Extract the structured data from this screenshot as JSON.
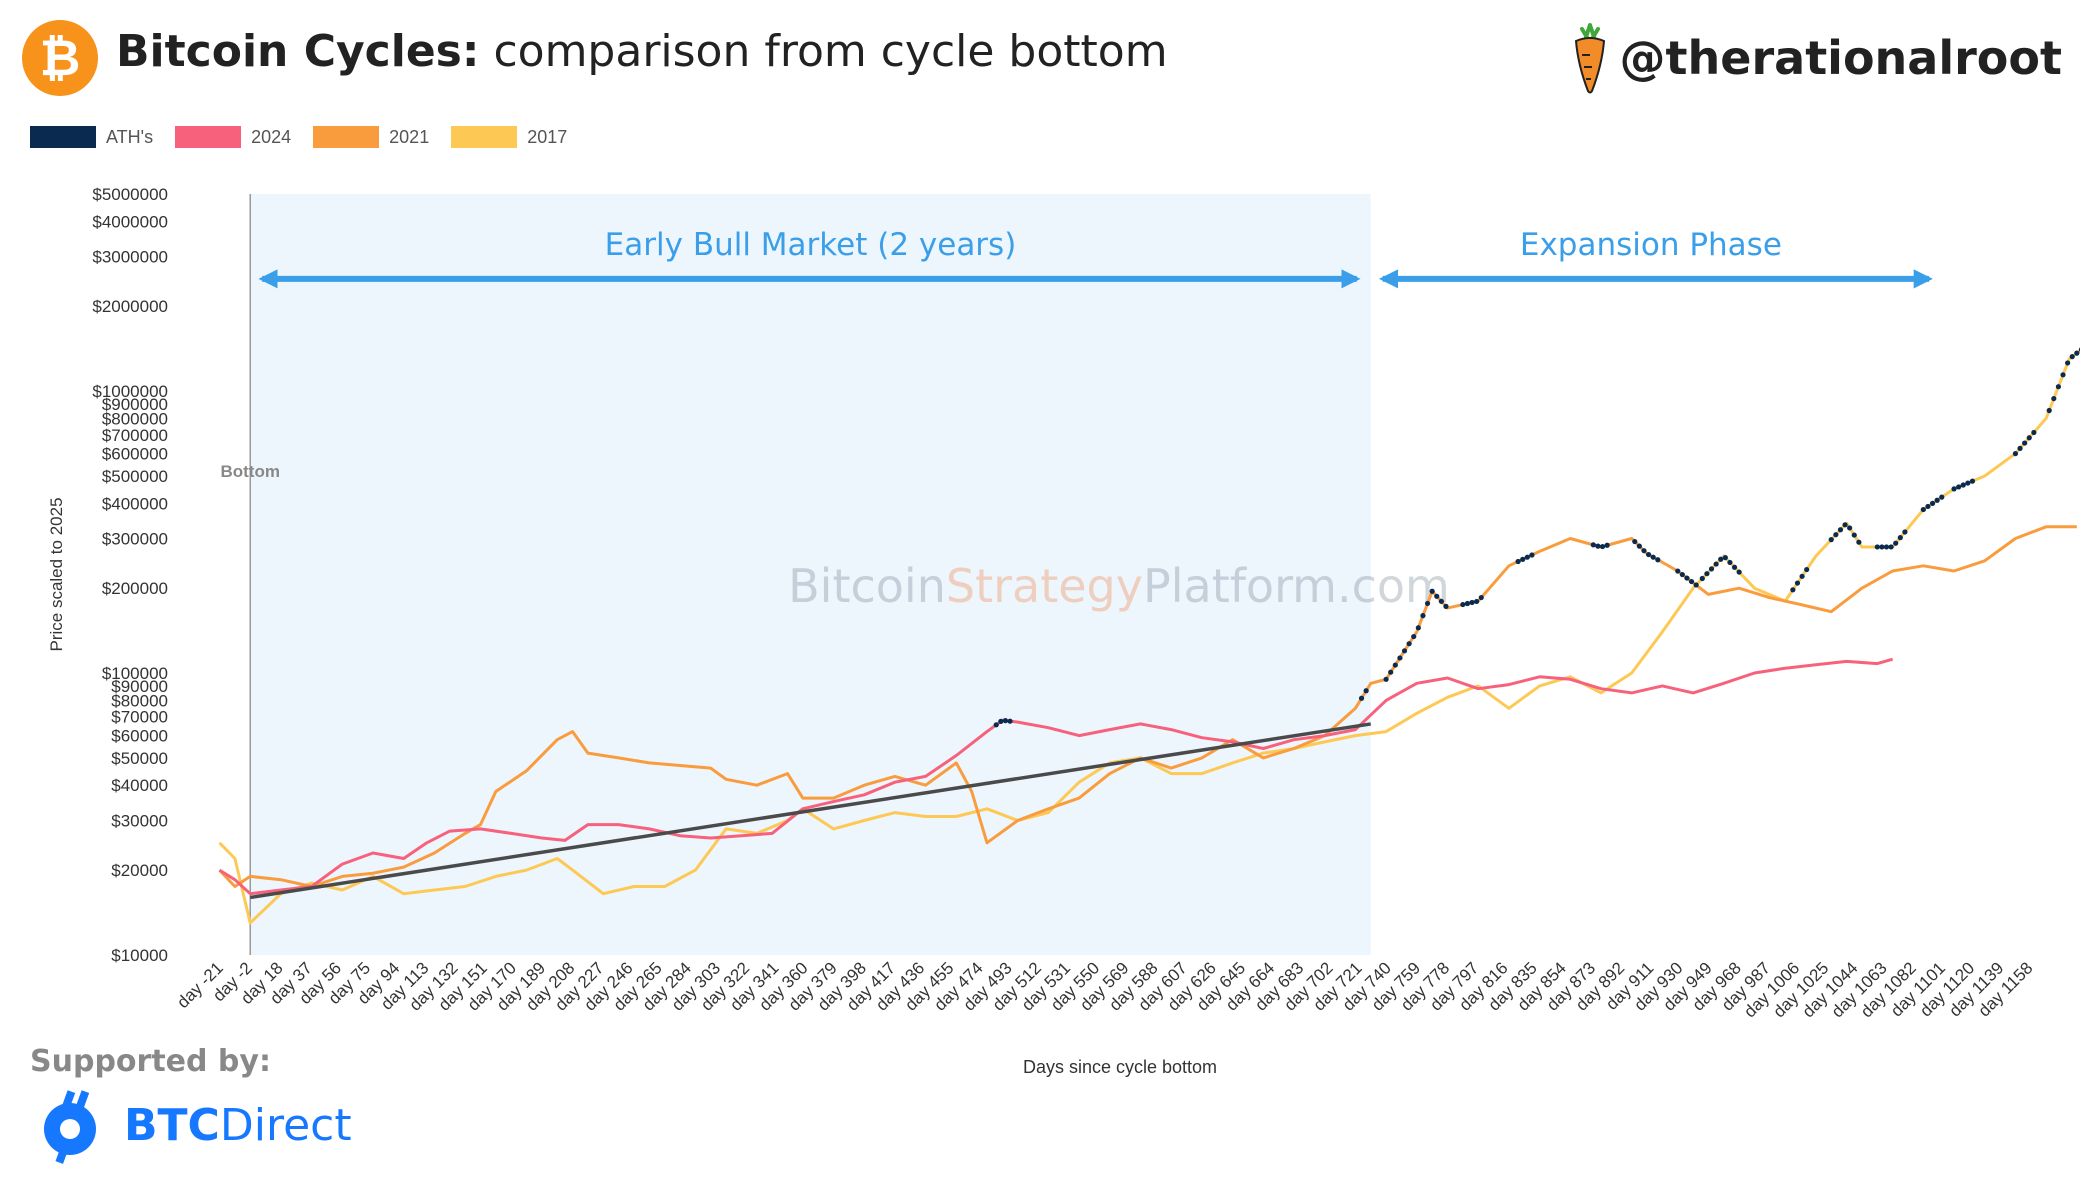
{
  "header": {
    "logo_symbol": "₿",
    "title_bold": "Bitcoin Cycles:",
    "title_rest": "comparison from cycle bottom",
    "handle": "@therationalroot",
    "handle_icon": "carrot-icon"
  },
  "legend": [
    {
      "label": "ATH's",
      "color": "#0b2a4f"
    },
    {
      "label": "2024",
      "color": "#f7617c"
    },
    {
      "label": "2021",
      "color": "#f99c3e"
    },
    {
      "label": "2017",
      "color": "#fdc954"
    }
  ],
  "footer": {
    "supported_by": "Supported by:",
    "sponsor_bold": "BTC",
    "sponsor_rest": "Direct",
    "sponsor_icon": "btcdirect-logo-icon"
  },
  "chart_data": {
    "type": "line",
    "xlabel": "Days since cycle bottom",
    "ylabel": "Price scaled to 2025",
    "y_scale": "log",
    "ylim": [
      10000,
      5000000
    ],
    "xlim": [
      -21,
      1166
    ],
    "x_tick_labels": [
      "day -21",
      "day -2",
      "day 18",
      "day 37",
      "day 56",
      "day 75",
      "day 94",
      "day 113",
      "day 132",
      "day 151",
      "day 170",
      "day 189",
      "day 208",
      "day 227",
      "day 246",
      "day 265",
      "day 284",
      "day 303",
      "day 322",
      "day 341",
      "day 360",
      "day 379",
      "day 398",
      "day 417",
      "day 436",
      "day 455",
      "day 474",
      "day 493",
      "day 512",
      "day 531",
      "day 550",
      "day 569",
      "day 588",
      "day 607",
      "day 626",
      "day 645",
      "day 664",
      "day 683",
      "day 702",
      "day 721",
      "day 740",
      "day 759",
      "day 778",
      "day 797",
      "day 816",
      "day 835",
      "day 854",
      "day 873",
      "day 892",
      "day 911",
      "day 930",
      "day 949",
      "day 968",
      "day 987",
      "day 1006",
      "day 1025",
      "day 1044",
      "day 1063",
      "day 1082",
      "day 1101",
      "day 1120",
      "day 1139",
      "day 1158"
    ],
    "y_ticks": [
      {
        "value": 10000,
        "label": "$10000"
      },
      {
        "value": 20000,
        "label": "$20000"
      },
      {
        "value": 30000,
        "label": "$30000"
      },
      {
        "value": 40000,
        "label": "$40000"
      },
      {
        "value": 50000,
        "label": "$50000"
      },
      {
        "value": 60000,
        "label": "$60000"
      },
      {
        "value": 70000,
        "label": "$70000"
      },
      {
        "value": 80000,
        "label": "$80000"
      },
      {
        "value": 90000,
        "label": "$90000"
      },
      {
        "value": 100000,
        "label": "$100000"
      },
      {
        "value": 200000,
        "label": "$200000"
      },
      {
        "value": 300000,
        "label": "$300000"
      },
      {
        "value": 400000,
        "label": "$400000"
      },
      {
        "value": 500000,
        "label": "$500000"
      },
      {
        "value": 600000,
        "label": "$600000"
      },
      {
        "value": 700000,
        "label": "$700000"
      },
      {
        "value": 800000,
        "label": "$800000"
      },
      {
        "value": 900000,
        "label": "$900000"
      },
      {
        "value": 1000000,
        "label": "$1000000"
      },
      {
        "value": 2000000,
        "label": "$2000000"
      },
      {
        "value": 3000000,
        "label": "$3000000"
      },
      {
        "value": 4000000,
        "label": "$4000000"
      },
      {
        "value": 5000000,
        "label": "$5000000"
      }
    ],
    "grid": false,
    "legend_position": "top-left",
    "watermark": {
      "part1": "Bitcoin",
      "part2": "Strategy",
      "part3": "Platform.com"
    },
    "annotations": {
      "bottom_label": "Bottom",
      "bottom_day": 0,
      "early_phase": {
        "label": "Early Bull Market (2 years)",
        "start_day": 0,
        "end_day": 730
      },
      "expansion_phase": {
        "label": "Expansion Phase",
        "start_day": 730,
        "end_day": 1095
      },
      "phase_arrow_level": 2500000,
      "phase_label_level": 3300000,
      "trendline": {
        "start": [
          0,
          16000
        ],
        "end": [
          730,
          66000
        ],
        "color": "#4a4a4a"
      }
    },
    "series": [
      {
        "name": "2024",
        "color": "#f7617c",
        "points": [
          [
            -20,
            20000
          ],
          [
            -10,
            18500
          ],
          [
            0,
            16500
          ],
          [
            20,
            17000
          ],
          [
            40,
            17500
          ],
          [
            60,
            21000
          ],
          [
            80,
            23000
          ],
          [
            100,
            22000
          ],
          [
            115,
            25000
          ],
          [
            130,
            27500
          ],
          [
            150,
            28000
          ],
          [
            170,
            27000
          ],
          [
            190,
            26000
          ],
          [
            205,
            25500
          ],
          [
            220,
            29000
          ],
          [
            240,
            29000
          ],
          [
            260,
            28000
          ],
          [
            280,
            26500
          ],
          [
            300,
            26000
          ],
          [
            320,
            26500
          ],
          [
            340,
            27000
          ],
          [
            360,
            33000
          ],
          [
            380,
            35000
          ],
          [
            400,
            37000
          ],
          [
            420,
            41000
          ],
          [
            440,
            43000
          ],
          [
            460,
            51000
          ],
          [
            480,
            62000
          ],
          [
            490,
            68000
          ],
          [
            500,
            67000
          ],
          [
            520,
            64000
          ],
          [
            540,
            60000
          ],
          [
            560,
            63000
          ],
          [
            580,
            66000
          ],
          [
            600,
            63000
          ],
          [
            620,
            59000
          ],
          [
            640,
            57000
          ],
          [
            660,
            54000
          ],
          [
            680,
            58000
          ],
          [
            700,
            60000
          ],
          [
            720,
            63000
          ],
          [
            740,
            80000
          ],
          [
            760,
            92000
          ],
          [
            780,
            96000
          ],
          [
            800,
            88000
          ],
          [
            820,
            91000
          ],
          [
            840,
            97000
          ],
          [
            860,
            95000
          ],
          [
            880,
            88000
          ],
          [
            900,
            85000
          ],
          [
            920,
            90000
          ],
          [
            940,
            85000
          ],
          [
            960,
            92000
          ],
          [
            980,
            100000
          ],
          [
            1000,
            104000
          ],
          [
            1020,
            107000
          ],
          [
            1040,
            110000
          ],
          [
            1060,
            108000
          ],
          [
            1070,
            112000
          ]
        ]
      },
      {
        "name": "2021",
        "color": "#f99c3e",
        "points": [
          [
            -20,
            20000
          ],
          [
            -10,
            17500
          ],
          [
            0,
            19000
          ],
          [
            20,
            18500
          ],
          [
            40,
            17500
          ],
          [
            60,
            19000
          ],
          [
            80,
            19500
          ],
          [
            100,
            20500
          ],
          [
            120,
            23000
          ],
          [
            140,
            27000
          ],
          [
            150,
            29000
          ],
          [
            160,
            38000
          ],
          [
            180,
            45000
          ],
          [
            200,
            58000
          ],
          [
            210,
            62000
          ],
          [
            220,
            52000
          ],
          [
            240,
            50000
          ],
          [
            260,
            48000
          ],
          [
            280,
            47000
          ],
          [
            300,
            46000
          ],
          [
            310,
            42000
          ],
          [
            330,
            40000
          ],
          [
            350,
            44000
          ],
          [
            360,
            36000
          ],
          [
            380,
            36000
          ],
          [
            400,
            40000
          ],
          [
            420,
            43000
          ],
          [
            440,
            40000
          ],
          [
            460,
            48000
          ],
          [
            470,
            38000
          ],
          [
            480,
            25000
          ],
          [
            500,
            30000
          ],
          [
            520,
            33000
          ],
          [
            540,
            36000
          ],
          [
            560,
            44000
          ],
          [
            580,
            50000
          ],
          [
            600,
            46000
          ],
          [
            620,
            50000
          ],
          [
            640,
            58000
          ],
          [
            660,
            50000
          ],
          [
            680,
            54000
          ],
          [
            700,
            60000
          ],
          [
            720,
            75000
          ],
          [
            730,
            92000
          ],
          [
            740,
            95000
          ],
          [
            760,
            140000
          ],
          [
            770,
            195000
          ],
          [
            780,
            170000
          ],
          [
            800,
            180000
          ],
          [
            820,
            240000
          ],
          [
            840,
            270000
          ],
          [
            860,
            300000
          ],
          [
            880,
            280000
          ],
          [
            900,
            300000
          ],
          [
            910,
            265000
          ],
          [
            930,
            230000
          ],
          [
            950,
            190000
          ],
          [
            970,
            200000
          ],
          [
            990,
            185000
          ],
          [
            1010,
            175000
          ],
          [
            1030,
            165000
          ],
          [
            1050,
            200000
          ],
          [
            1070,
            230000
          ],
          [
            1090,
            240000
          ],
          [
            1110,
            230000
          ],
          [
            1130,
            250000
          ],
          [
            1150,
            300000
          ],
          [
            1170,
            330000
          ],
          [
            1190,
            330000
          ]
        ]
      },
      {
        "name": "2017",
        "color": "#fdc954",
        "points": [
          [
            -20,
            25000
          ],
          [
            -10,
            22000
          ],
          [
            0,
            13000
          ],
          [
            20,
            16500
          ],
          [
            40,
            18000
          ],
          [
            60,
            17000
          ],
          [
            80,
            19000
          ],
          [
            100,
            16500
          ],
          [
            120,
            17000
          ],
          [
            140,
            17500
          ],
          [
            160,
            19000
          ],
          [
            180,
            20000
          ],
          [
            200,
            22000
          ],
          [
            210,
            20000
          ],
          [
            230,
            16500
          ],
          [
            250,
            17500
          ],
          [
            270,
            17500
          ],
          [
            290,
            20000
          ],
          [
            310,
            28000
          ],
          [
            330,
            27000
          ],
          [
            350,
            30000
          ],
          [
            360,
            33000
          ],
          [
            380,
            28000
          ],
          [
            400,
            30000
          ],
          [
            420,
            32000
          ],
          [
            440,
            31000
          ],
          [
            460,
            31000
          ],
          [
            480,
            33000
          ],
          [
            500,
            30000
          ],
          [
            520,
            32000
          ],
          [
            540,
            41000
          ],
          [
            560,
            48000
          ],
          [
            580,
            50000
          ],
          [
            600,
            44000
          ],
          [
            620,
            44000
          ],
          [
            640,
            48000
          ],
          [
            660,
            52000
          ],
          [
            680,
            54000
          ],
          [
            700,
            57000
          ],
          [
            720,
            60000
          ],
          [
            740,
            62000
          ],
          [
            760,
            72000
          ],
          [
            780,
            82000
          ],
          [
            800,
            90000
          ],
          [
            820,
            75000
          ],
          [
            840,
            90000
          ],
          [
            860,
            97000
          ],
          [
            880,
            85000
          ],
          [
            900,
            100000
          ],
          [
            920,
            140000
          ],
          [
            940,
            200000
          ],
          [
            960,
            260000
          ],
          [
            980,
            200000
          ],
          [
            1000,
            180000
          ],
          [
            1020,
            260000
          ],
          [
            1040,
            340000
          ],
          [
            1050,
            280000
          ],
          [
            1070,
            280000
          ],
          [
            1090,
            380000
          ],
          [
            1110,
            450000
          ],
          [
            1130,
            500000
          ],
          [
            1150,
            600000
          ],
          [
            1170,
            800000
          ],
          [
            1185,
            1300000
          ],
          [
            1200,
            1500000
          ]
        ]
      }
    ],
    "ath_markers": [
      {
        "color": "#0b2a4f",
        "day_ranges": [
          [
            486,
            496
          ],
          [
            724,
            728
          ],
          [
            740,
            780
          ],
          [
            790,
            802
          ],
          [
            826,
            836
          ],
          [
            875,
            886
          ],
          [
            902,
            918
          ],
          [
            930,
            944
          ],
          [
            946,
            972
          ],
          [
            1005,
            1014
          ],
          [
            1030,
            1048
          ],
          [
            1060,
            1080
          ],
          [
            1090,
            1102
          ],
          [
            1110,
            1122
          ],
          [
            1150,
            1162
          ],
          [
            1172,
            1200
          ]
        ]
      }
    ]
  }
}
